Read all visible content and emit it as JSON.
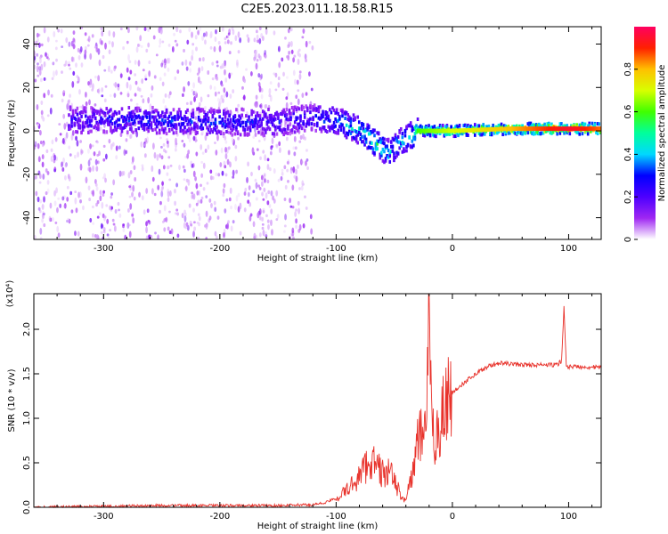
{
  "figure": {
    "title": "C2E5.2023.011.18.58.R15"
  },
  "chart_data": [
    {
      "type": "heatmap",
      "xlabel": "Height of straight line (km)",
      "ylabel": "Frequency (Hz)",
      "xlim": [
        -360,
        128
      ],
      "ylim": [
        -50,
        48
      ],
      "xticks": [
        -300,
        -200,
        -100,
        0,
        100
      ],
      "yticks": [
        -40,
        -20,
        0,
        20,
        40
      ],
      "colorbar": {
        "label": "Normalized spectral amplitude",
        "range": [
          0,
          1
        ],
        "ticks": [
          0.0,
          0.2,
          0.4,
          0.6,
          0.8
        ],
        "colormap": [
          "#ffffff",
          "#9f27f2",
          "#4d00ff",
          "#0000ff",
          "#00d8ff",
          "#00ff9c",
          "#40ff00",
          "#d8ff00",
          "#ffc000",
          "#ff2000",
          "#ff0060"
        ]
      },
      "ridge": {
        "x": [
          -330,
          -270,
          -200,
          -150,
          -120,
          -100,
          -80,
          -65,
          -55,
          -45,
          -38,
          -30,
          0,
          50,
          100,
          128
        ],
        "y": [
          5,
          5,
          4,
          4,
          6,
          5,
          0,
          -6,
          -10,
          -5,
          -3,
          0,
          0,
          1,
          1,
          1
        ],
        "amplitude": [
          0.25,
          0.3,
          0.3,
          0.28,
          0.3,
          0.4,
          0.45,
          0.5,
          0.45,
          0.4,
          0.45,
          0.6,
          0.7,
          0.8,
          0.95,
          0.85
        ]
      },
      "noise_region": [
        -360,
        -120
      ]
    },
    {
      "type": "line",
      "xlabel": "Height of straight line (km)",
      "ylabel": "SNR (10 * v/v)",
      "y_multiplier": "(x10⁴)",
      "xlim": [
        -360,
        128
      ],
      "ylim": [
        0,
        2.4
      ],
      "xticks": [
        -300,
        -200,
        -100,
        0,
        100
      ],
      "yticks": [
        0.0,
        0.5,
        1.0,
        1.5,
        2.0
      ],
      "series": [
        {
          "color": "#e8322b",
          "x": [
            -360,
            -300,
            -250,
            -200,
            -150,
            -120,
            -110,
            -100,
            -90,
            -80,
            -75,
            -70,
            -65,
            -60,
            -55,
            -50,
            -45,
            -40,
            -35,
            -30,
            -25,
            -22,
            -20,
            -18,
            -15,
            -10,
            -5,
            0,
            5,
            10,
            20,
            30,
            40,
            60,
            80,
            90,
            94,
            96,
            98,
            100,
            110,
            128
          ],
          "y": [
            0.0,
            0.01,
            0.02,
            0.02,
            0.02,
            0.03,
            0.05,
            0.1,
            0.2,
            0.35,
            0.45,
            0.55,
            0.45,
            0.38,
            0.4,
            0.3,
            0.15,
            0.08,
            0.35,
            0.7,
            0.85,
            1.3,
            2.35,
            0.9,
            0.75,
            1.0,
            1.2,
            1.28,
            1.35,
            1.4,
            1.5,
            1.58,
            1.62,
            1.6,
            1.6,
            1.6,
            1.65,
            2.25,
            1.58,
            1.58,
            1.58,
            1.57
          ]
        }
      ]
    }
  ]
}
